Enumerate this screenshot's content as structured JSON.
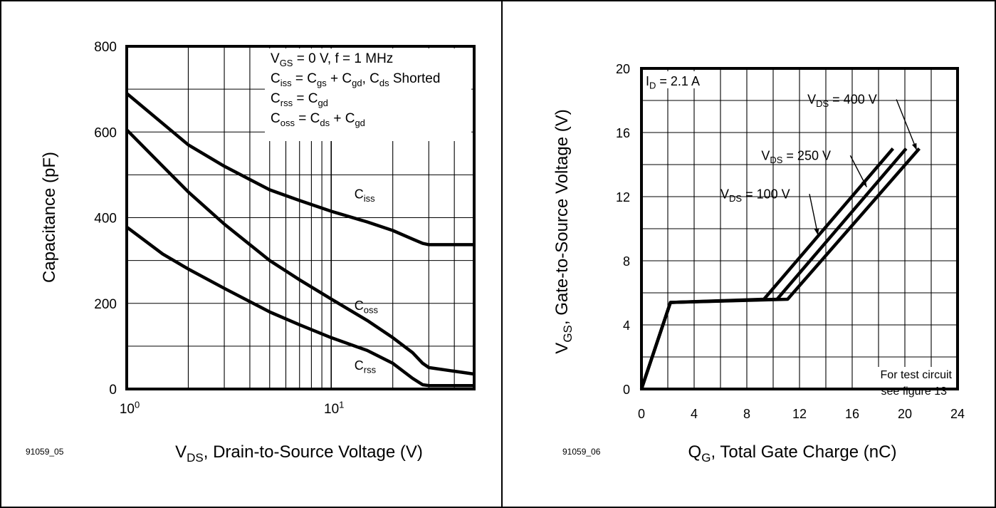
{
  "chart_data": [
    {
      "type": "line",
      "x_scale": "log",
      "xlim": [
        1,
        50
      ],
      "ylim": [
        0,
        800
      ],
      "grid": true,
      "figure_id": "91059_05",
      "xlabel_main": "V",
      "xlabel_sub": "DS",
      "xlabel_rest": ", Drain-to-Source Voltage (V)",
      "ylabel": "Capacitance (pF)",
      "y_ticks": [
        {
          "v": 0,
          "label": "0"
        },
        {
          "v": 200,
          "label": "200"
        },
        {
          "v": 400,
          "label": "400"
        },
        {
          "v": 600,
          "label": "600"
        },
        {
          "v": 800,
          "label": "800"
        }
      ],
      "x_ticks": [
        {
          "v": 1,
          "base": "10",
          "exp": "0"
        },
        {
          "v": 10,
          "base": "10",
          "exp": "1"
        }
      ],
      "conditions": [
        {
          "parts": [
            [
              "V",
              ""
            ],
            [
              "GS",
              "sub"
            ],
            [
              " = 0 V, f = 1 MHz",
              ""
            ]
          ]
        },
        {
          "parts": [
            [
              "C",
              ""
            ],
            [
              "iss",
              "sub"
            ],
            [
              " = C",
              ""
            ],
            [
              "gs",
              "sub"
            ],
            [
              " + C",
              ""
            ],
            [
              "gd",
              "sub"
            ],
            [
              ", C",
              ""
            ],
            [
              "ds",
              "sub"
            ],
            [
              " Shorted",
              ""
            ]
          ]
        },
        {
          "parts": [
            [
              "C",
              ""
            ],
            [
              "rss",
              "sub"
            ],
            [
              " = C",
              ""
            ],
            [
              "gd",
              "sub"
            ]
          ]
        },
        {
          "parts": [
            [
              "C",
              ""
            ],
            [
              "oss",
              "sub"
            ],
            [
              " = C",
              ""
            ],
            [
              "ds",
              "sub"
            ],
            [
              " + C",
              ""
            ],
            [
              "gd",
              "sub"
            ]
          ]
        }
      ],
      "series": [
        {
          "name": "C",
          "sub": "iss",
          "label_x": 15,
          "label_y": 445,
          "points": [
            [
              1,
              690
            ],
            [
              2,
              570
            ],
            [
              3,
              520
            ],
            [
              5,
              465
            ],
            [
              7,
              440
            ],
            [
              10,
              415
            ],
            [
              15,
              390
            ],
            [
              20,
              370
            ],
            [
              25,
              350
            ],
            [
              28,
              340
            ],
            [
              30,
              337
            ],
            [
              50,
              337
            ]
          ]
        },
        {
          "name": "C",
          "sub": "oss",
          "label_x": 15,
          "label_y": 185,
          "points": [
            [
              1,
              605
            ],
            [
              1.5,
              520
            ],
            [
              2,
              460
            ],
            [
              3,
              385
            ],
            [
              5,
              300
            ],
            [
              7,
              255
            ],
            [
              10,
              210
            ],
            [
              15,
              160
            ],
            [
              20,
              120
            ],
            [
              25,
              85
            ],
            [
              28,
              60
            ],
            [
              30,
              50
            ],
            [
              50,
              35
            ]
          ]
        },
        {
          "name": "C",
          "sub": "rss",
          "label_x": 15,
          "label_y": 45,
          "points": [
            [
              1,
              378
            ],
            [
              1.5,
              315
            ],
            [
              2,
              280
            ],
            [
              3,
              235
            ],
            [
              5,
              180
            ],
            [
              7,
              150
            ],
            [
              10,
              120
            ],
            [
              15,
              90
            ],
            [
              20,
              60
            ],
            [
              25,
              25
            ],
            [
              28,
              10
            ],
            [
              30,
              8
            ],
            [
              50,
              8
            ]
          ]
        }
      ]
    },
    {
      "type": "line",
      "xlim": [
        0,
        24
      ],
      "ylim": [
        0,
        20
      ],
      "grid": true,
      "figure_id": "91059_06",
      "xlabel_main": "Q",
      "xlabel_sub": "G",
      "xlabel_rest": ", Total Gate Charge (nC)",
      "ylabel_main": "V",
      "ylabel_sub": "GS",
      "ylabel_rest": ", Gate-to-Source Voltage (V)",
      "x_ticks": [
        0,
        4,
        8,
        12,
        16,
        20,
        24
      ],
      "y_ticks": [
        0,
        4,
        8,
        12,
        16,
        20
      ],
      "condition": {
        "parts": [
          [
            "I",
            ""
          ],
          [
            "D",
            "sub"
          ],
          [
            " = 2.1 A",
            ""
          ]
        ]
      },
      "note_lines": [
        "For test circuit",
        "see figure 13"
      ],
      "series": [
        {
          "name": "V",
          "sub": "DS",
          "value_text": " = 100 V",
          "label_x": 6,
          "label_y": 11.9,
          "arrow_to": [
            13.4,
            9.6
          ],
          "points": [
            [
              0,
              0
            ],
            [
              2.2,
              5.4
            ],
            [
              9.3,
              5.6
            ],
            [
              19.1,
              15
            ]
          ]
        },
        {
          "name": "V",
          "sub": "DS",
          "value_text": " = 250 V",
          "label_x": 9.1,
          "label_y": 14.3,
          "arrow_to": [
            17.1,
            12.6
          ],
          "points": [
            [
              0,
              0
            ],
            [
              2.2,
              5.4
            ],
            [
              10.3,
              5.6
            ],
            [
              20.1,
              15
            ]
          ]
        },
        {
          "name": "V",
          "sub": "DS",
          "value_text": " = 400 V",
          "label_x": 12.6,
          "label_y": 17.8,
          "arrow_to": [
            20.9,
            14.9
          ],
          "points": [
            [
              0,
              0
            ],
            [
              2.2,
              5.4
            ],
            [
              11.1,
              5.6
            ],
            [
              21.1,
              15
            ]
          ]
        }
      ]
    }
  ]
}
